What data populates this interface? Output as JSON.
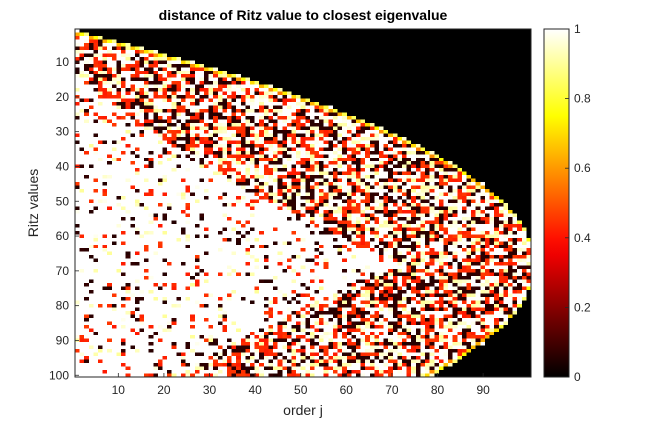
{
  "chart_data": {
    "type": "heatmap",
    "title": "distance of Ritz value to closest eigenvalue",
    "xlabel": "order j",
    "ylabel": "Ritz values",
    "x_range": [
      1,
      100
    ],
    "y_range": [
      1,
      100
    ],
    "y_reversed": true,
    "x_ticks": [
      10,
      20,
      30,
      40,
      50,
      60,
      70,
      80,
      90
    ],
    "y_ticks": [
      10,
      20,
      30,
      40,
      50,
      60,
      70,
      80,
      90,
      100
    ],
    "colormap": "hot",
    "color_range": [
      0,
      1
    ],
    "colorbar_ticks": [
      0,
      0.2,
      0.4,
      0.6,
      0.8,
      1
    ],
    "colorbar_tick_labels": [
      "0",
      "0.2",
      "0.4",
      "0.6",
      "0.8",
      "1"
    ],
    "colorbar_position": "right",
    "matrix_size": [
      100,
      99
    ],
    "regions": {
      "upper_triangle_above_ritz_count": 0,
      "converged_left_region": 1,
      "boundary_rim": "bright red to white"
    }
  }
}
